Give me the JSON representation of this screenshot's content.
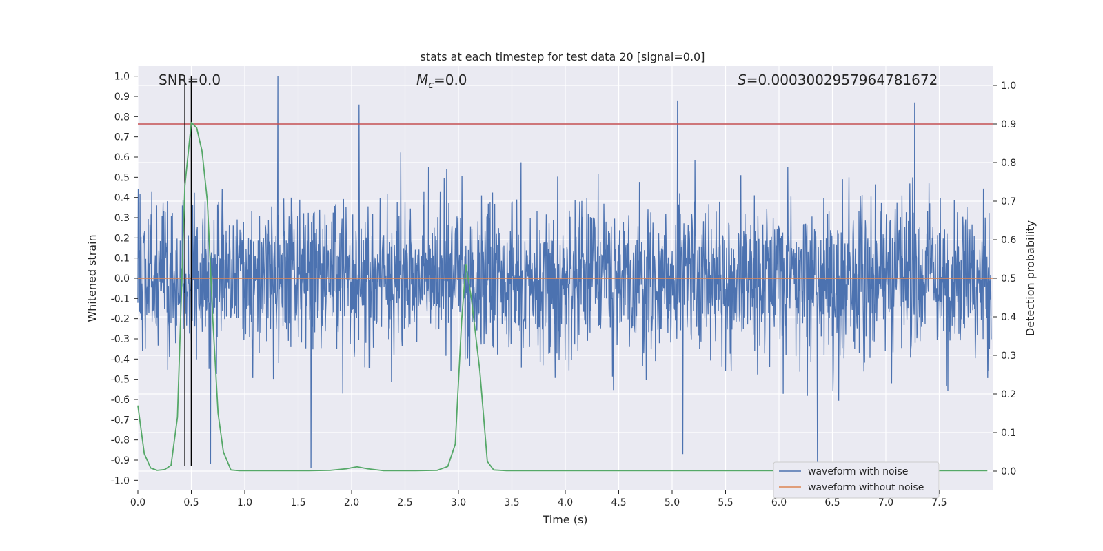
{
  "chart_data": {
    "type": "line",
    "title": "stats at each timestep for test data 20 [signal=0.0]",
    "xlabel": "Time (s)",
    "ylabel": "Whitened strain",
    "y2label": "Detection probability",
    "xlim": [
      0.0,
      8.0
    ],
    "ylim": [
      -1.05,
      1.05
    ],
    "y2lim": [
      -0.05,
      1.05
    ],
    "x_ticks": [
      "0.0",
      "0.5",
      "1.0",
      "1.5",
      "2.0",
      "2.5",
      "3.0",
      "3.5",
      "4.0",
      "4.5",
      "5.0",
      "5.5",
      "6.0",
      "6.5",
      "7.0",
      "7.5"
    ],
    "y_ticks": [
      "1.0",
      "0.9",
      "0.8",
      "0.7",
      "0.6",
      "0.5",
      "0.4",
      "0.3",
      "0.2",
      "0.1",
      "0.0",
      "-0.1",
      "-0.2",
      "-0.3",
      "-0.4",
      "-0.5",
      "-0.6",
      "-0.7",
      "-0.8",
      "-0.9",
      "-1.0"
    ],
    "y2_ticks": [
      "1.0",
      "0.9",
      "0.8",
      "0.7",
      "0.6",
      "0.5",
      "0.4",
      "0.3",
      "0.2",
      "0.1",
      "0.0"
    ],
    "annotations": {
      "snr": "SNR=0.0",
      "mc_symbol": "M",
      "mc_sub": "c",
      "mc_value": "=0.0",
      "s_symbol": "S",
      "s_value": "=0.0003002957964781672"
    },
    "threshold_probability": 0.9,
    "vertical_markers": [
      0.44,
      0.5
    ],
    "series": [
      {
        "name": "waveform with noise",
        "color": "#4c72b0",
        "description": "whitened noisy strain, amplitude roughly within [-0.94, 1.0]",
        "spikes": [
          [
            1.31,
            1.0
          ],
          [
            2.07,
            0.86
          ],
          [
            5.05,
            0.88
          ],
          [
            7.27,
            0.87
          ],
          [
            1.62,
            -0.94
          ],
          [
            6.36,
            -0.93
          ],
          [
            5.1,
            -0.87
          ],
          [
            0.68,
            -0.92
          ]
        ]
      },
      {
        "name": "waveform without noise",
        "color": "#dd8452",
        "values_constant": 0.0
      },
      {
        "name": "detection probability",
        "color": "#55a868",
        "axis": "right",
        "x": [
          0.0,
          0.06,
          0.12,
          0.18,
          0.25,
          0.31,
          0.37,
          0.44,
          0.5,
          0.55,
          0.6,
          0.65,
          0.7,
          0.75,
          0.8,
          0.87,
          0.95,
          1.2,
          1.6,
          1.8,
          1.95,
          2.05,
          2.15,
          2.3,
          2.6,
          2.8,
          2.9,
          2.97,
          3.03,
          3.07,
          3.12,
          3.2,
          3.27,
          3.33,
          3.45,
          4.0,
          5.0,
          6.0,
          7.0,
          7.95
        ],
        "values": [
          0.17,
          0.045,
          0.008,
          0.002,
          0.004,
          0.015,
          0.14,
          0.74,
          0.904,
          0.89,
          0.83,
          0.7,
          0.4,
          0.15,
          0.05,
          0.003,
          0.001,
          0.001,
          0.001,
          0.002,
          0.006,
          0.011,
          0.006,
          0.001,
          0.001,
          0.002,
          0.012,
          0.07,
          0.39,
          0.535,
          0.45,
          0.26,
          0.025,
          0.003,
          0.001,
          0.001,
          0.001,
          0.001,
          0.001,
          0.001
        ]
      }
    ],
    "legend": [
      "waveform with noise",
      "waveform without noise"
    ],
    "legend_position": "lower-right"
  }
}
